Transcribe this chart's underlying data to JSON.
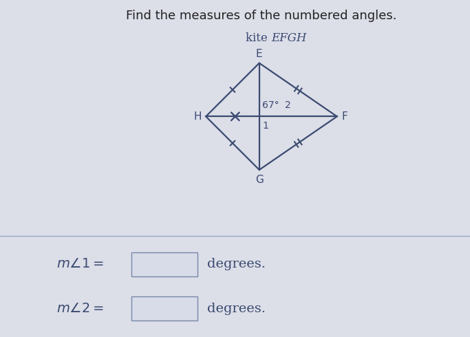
{
  "title": "Find the measures of the numbered angles.",
  "kite_label": "kite EFGH",
  "bg_color": "#dcdee8",
  "panel_color": "#e8eaf0",
  "line_color": "#3a4a70",
  "text_color": "#3a4a70",
  "angle_label": "67°",
  "label1": "1",
  "label2": "2",
  "title_color": "#222222",
  "divider_color": "#8899bb"
}
